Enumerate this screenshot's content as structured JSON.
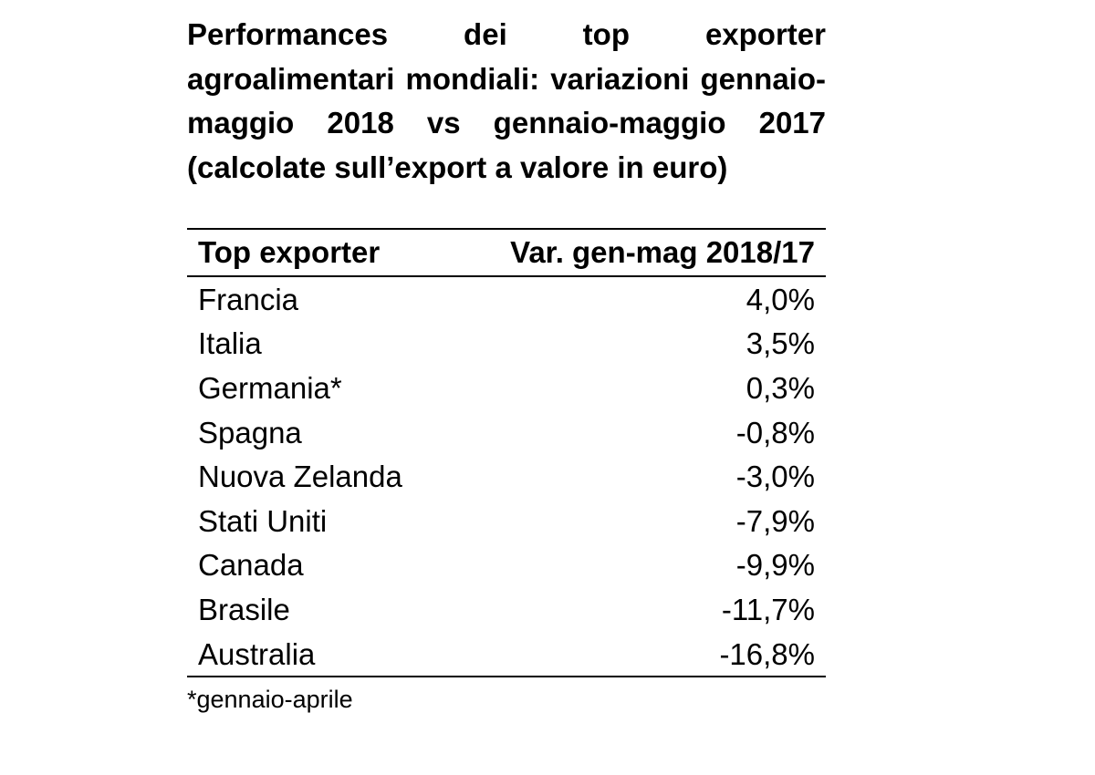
{
  "title": "Performances dei top exporter agroalimentari mondiali: variazioni gennaio-maggio 2018 vs gennaio-maggio 2017 (calcolate sull’export a valore in euro)",
  "table": {
    "headers": {
      "country": "Top exporter",
      "variation": "Var. gen-mag 2018/17"
    },
    "rows": [
      {
        "country": "Francia",
        "variation": "4,0%"
      },
      {
        "country": "Italia",
        "variation": "3,5%"
      },
      {
        "country": "Germania*",
        "variation": "0,3%"
      },
      {
        "country": "Spagna",
        "variation": "-0,8%"
      },
      {
        "country": "Nuova Zelanda",
        "variation": "-3,0%"
      },
      {
        "country": "Stati Uniti",
        "variation": "-7,9%"
      },
      {
        "country": "Canada",
        "variation": "-9,9%"
      },
      {
        "country": "Brasile",
        "variation": "-11,7%"
      },
      {
        "country": "Australia",
        "variation": "-16,8%"
      }
    ]
  },
  "note": "*gennaio-aprile"
}
